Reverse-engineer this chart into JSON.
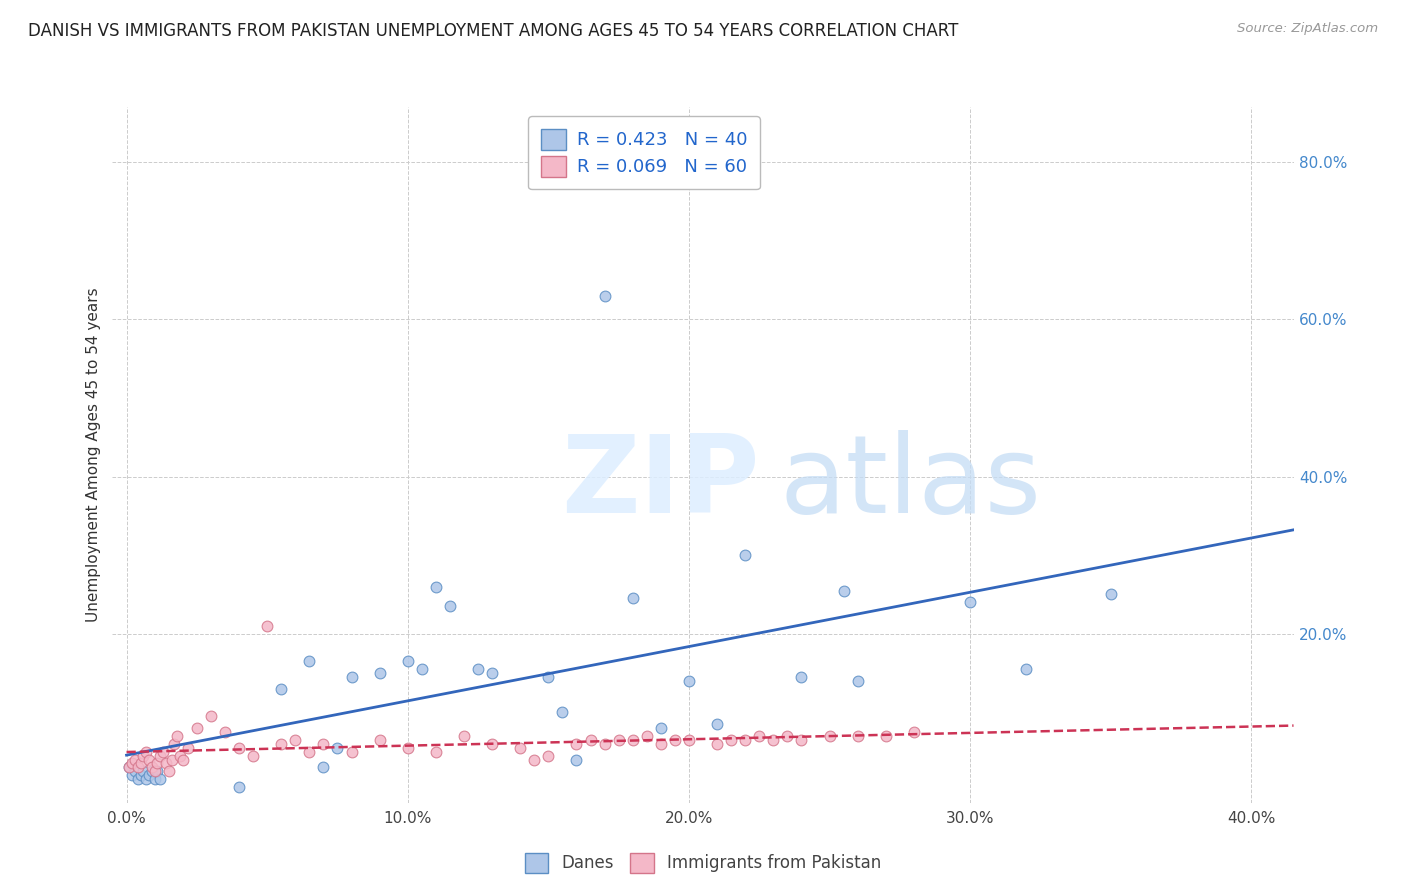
{
  "title": "DANISH VS IMMIGRANTS FROM PAKISTAN UNEMPLOYMENT AMONG AGES 45 TO 54 YEARS CORRELATION CHART",
  "source": "Source: ZipAtlas.com",
  "ylabel": "Unemployment Among Ages 45 to 54 years",
  "xlim": [
    0.0,
    0.42
  ],
  "ylim": [
    -0.02,
    0.88
  ],
  "plot_xlim": [
    0.0,
    0.4
  ],
  "plot_ylim": [
    0.0,
    0.85
  ],
  "xtick_labels": [
    "0.0%",
    "10.0%",
    "20.0%",
    "30.0%",
    "40.0%"
  ],
  "xtick_vals": [
    0.0,
    0.1,
    0.2,
    0.3,
    0.4
  ],
  "ytick_labels": [
    "20.0%",
    "40.0%",
    "60.0%",
    "80.0%"
  ],
  "ytick_vals": [
    0.2,
    0.4,
    0.6,
    0.8
  ],
  "danes_color": "#aec6e8",
  "danes_edge_color": "#5b8ec4",
  "pakistan_color": "#f4b8c8",
  "pakistan_edge_color": "#d4758a",
  "danes_line_color": "#3366bb",
  "pakistan_line_color": "#cc3355",
  "danes_R": 0.423,
  "danes_N": 40,
  "pakistan_R": 0.069,
  "pakistan_N": 60,
  "legend_label_danes": "Danes",
  "legend_label_pakistan": "Immigrants from Pakistan",
  "background_color": "#ffffff",
  "grid_color": "#cccccc",
  "title_fontsize": 12,
  "axis_label_fontsize": 11,
  "tick_fontsize": 11,
  "marker_size": 60,
  "danes_x": [
    0.001,
    0.002,
    0.003,
    0.004,
    0.005,
    0.006,
    0.007,
    0.008,
    0.009,
    0.01,
    0.011,
    0.012,
    0.04,
    0.055,
    0.065,
    0.07,
    0.075,
    0.08,
    0.09,
    0.1,
    0.105,
    0.11,
    0.115,
    0.125,
    0.13,
    0.15,
    0.155,
    0.16,
    0.17,
    0.18,
    0.19,
    0.2,
    0.21,
    0.22,
    0.24,
    0.255,
    0.26,
    0.3,
    0.32,
    0.35
  ],
  "danes_y": [
    0.03,
    0.02,
    0.025,
    0.015,
    0.02,
    0.025,
    0.015,
    0.02,
    0.025,
    0.015,
    0.025,
    0.015,
    0.005,
    0.13,
    0.165,
    0.03,
    0.055,
    0.145,
    0.15,
    0.165,
    0.155,
    0.26,
    0.235,
    0.155,
    0.15,
    0.145,
    0.1,
    0.04,
    0.63,
    0.245,
    0.08,
    0.14,
    0.085,
    0.3,
    0.145,
    0.255,
    0.14,
    0.24,
    0.155,
    0.25
  ],
  "pakistan_x": [
    0.001,
    0.002,
    0.003,
    0.004,
    0.005,
    0.006,
    0.007,
    0.008,
    0.009,
    0.01,
    0.011,
    0.012,
    0.013,
    0.014,
    0.015,
    0.016,
    0.017,
    0.018,
    0.019,
    0.02,
    0.022,
    0.025,
    0.03,
    0.035,
    0.04,
    0.045,
    0.05,
    0.055,
    0.06,
    0.065,
    0.07,
    0.08,
    0.09,
    0.1,
    0.11,
    0.12,
    0.13,
    0.14,
    0.145,
    0.15,
    0.16,
    0.165,
    0.17,
    0.175,
    0.18,
    0.185,
    0.19,
    0.195,
    0.2,
    0.21,
    0.215,
    0.22,
    0.225,
    0.23,
    0.235,
    0.24,
    0.25,
    0.26,
    0.27,
    0.28
  ],
  "pakistan_y": [
    0.03,
    0.035,
    0.04,
    0.03,
    0.035,
    0.045,
    0.05,
    0.04,
    0.03,
    0.025,
    0.035,
    0.045,
    0.05,
    0.035,
    0.025,
    0.04,
    0.06,
    0.07,
    0.045,
    0.04,
    0.055,
    0.08,
    0.095,
    0.075,
    0.055,
    0.045,
    0.21,
    0.06,
    0.065,
    0.05,
    0.06,
    0.05,
    0.065,
    0.055,
    0.05,
    0.07,
    0.06,
    0.055,
    0.04,
    0.045,
    0.06,
    0.065,
    0.06,
    0.065,
    0.065,
    0.07,
    0.06,
    0.065,
    0.065,
    0.06,
    0.065,
    0.065,
    0.07,
    0.065,
    0.07,
    0.065,
    0.07,
    0.07,
    0.07,
    0.075
  ]
}
